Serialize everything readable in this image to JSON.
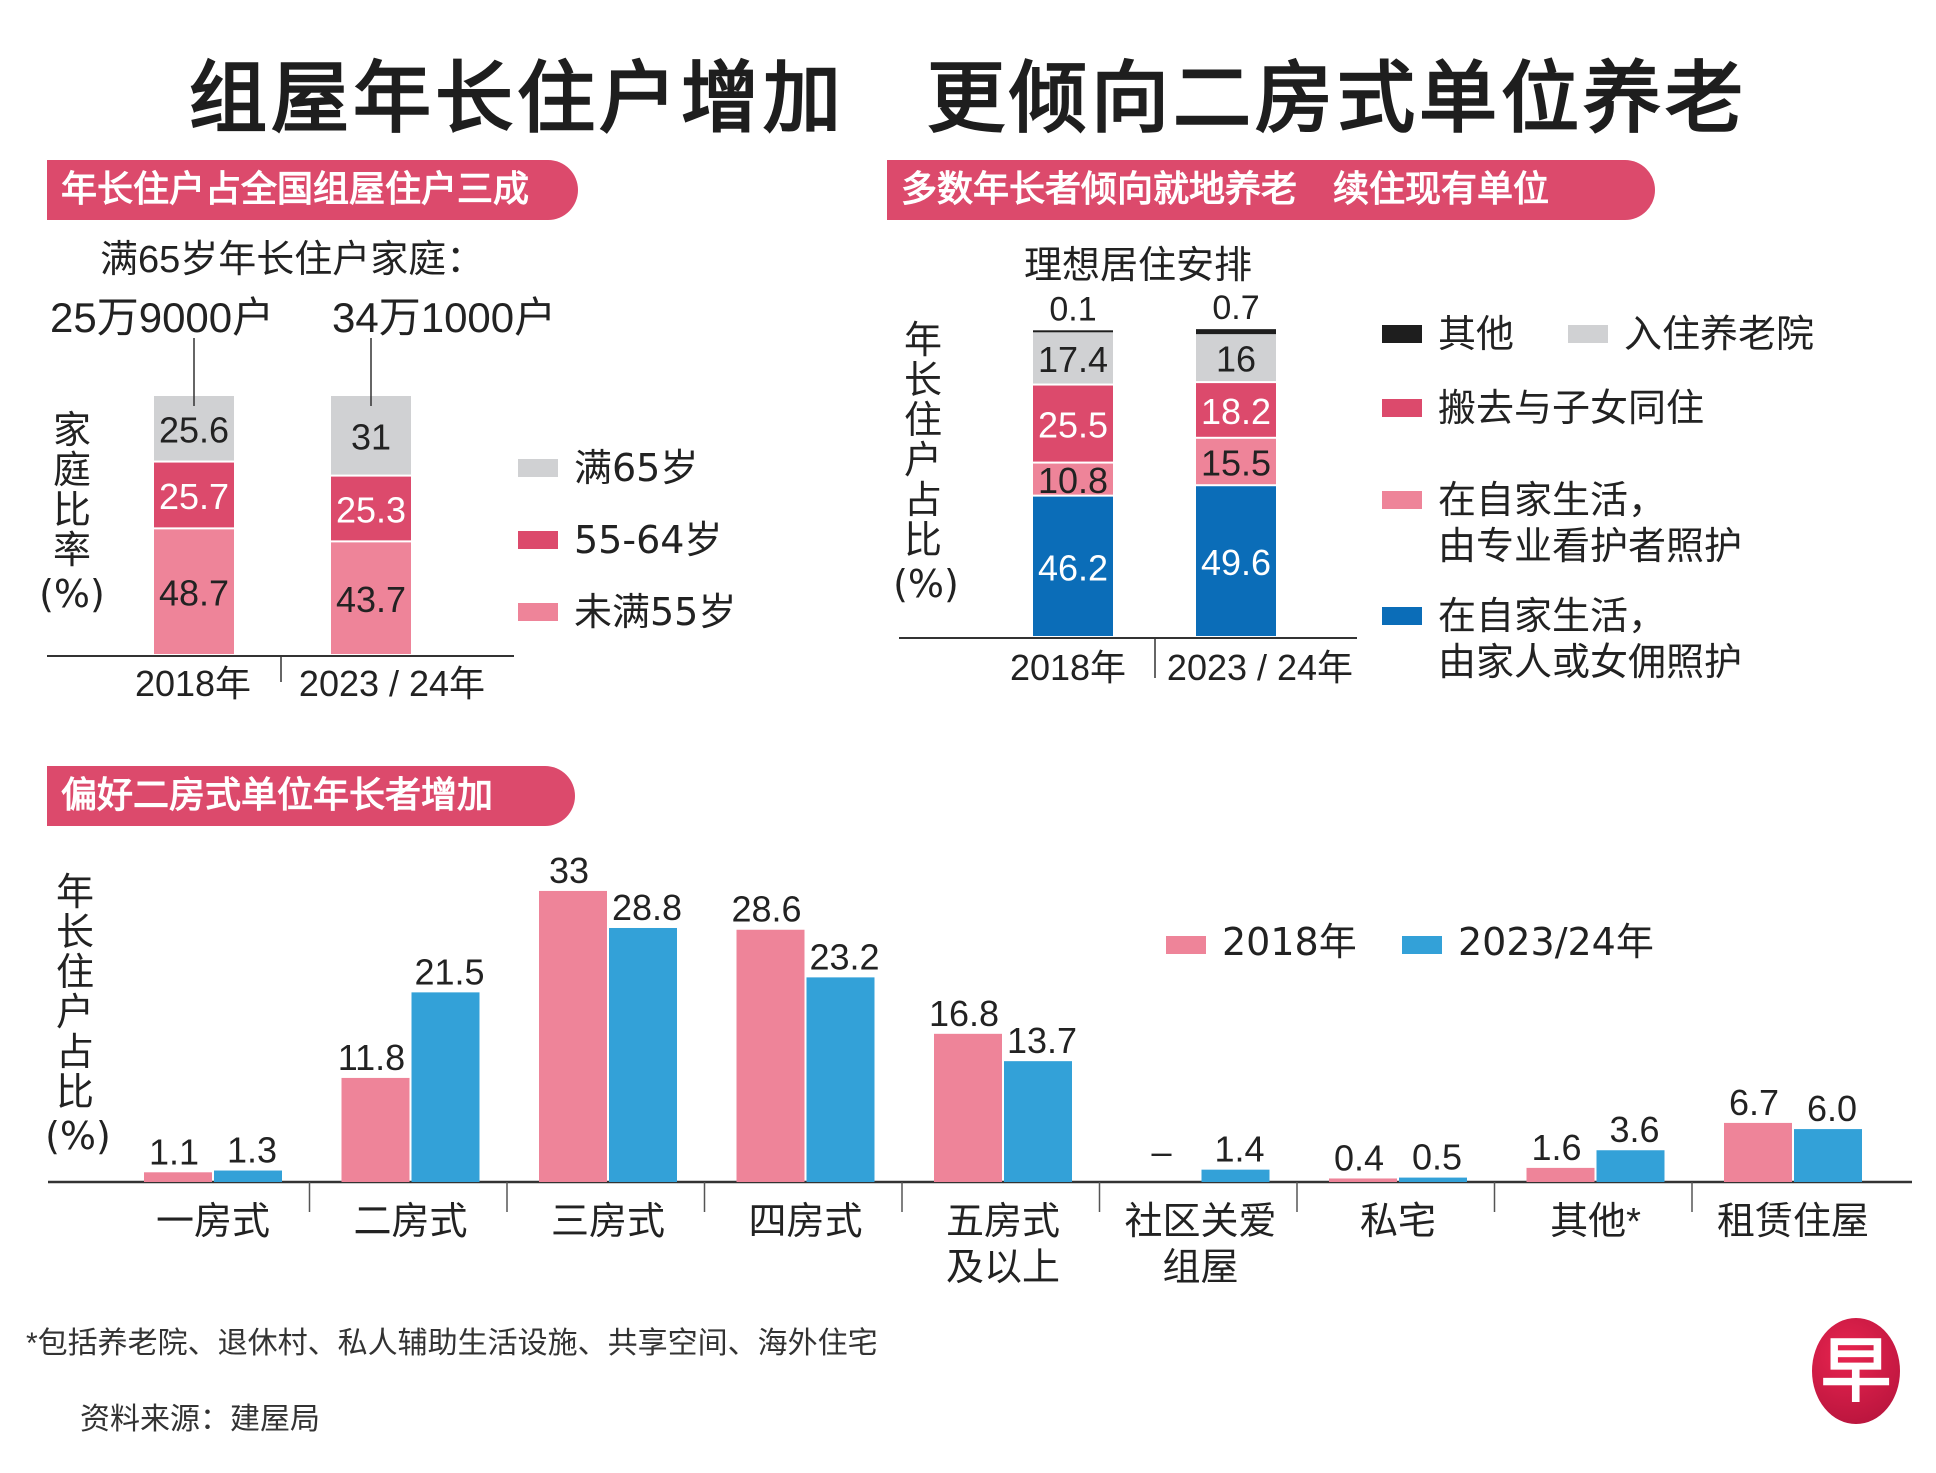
{
  "title": "组屋年长住户增加　更倾向二房式单位养老",
  "colors": {
    "header_bg": "#dc4a6c",
    "grey": "#d0d1d3",
    "red": "#dc4a6c",
    "pink": "#ee8499",
    "dark_blue": "#0b6db8",
    "light_blue": "#33a1d8",
    "black": "#1e1e1e"
  },
  "logo_char": "早",
  "footnote": "*包括养老院、退休村、私人辅助生活设施、共享空间、海外住宅",
  "source": "资料来源：建屋局",
  "chart_data": [
    {
      "type": "bar",
      "stacked": true,
      "section_header": "年长住户占全国组屋住户三成",
      "subtitle": "满65岁年长住户家庭：",
      "totals": [
        "25万9000户",
        "34万1000户"
      ],
      "ylabel": [
        "家",
        "庭",
        "比",
        "率",
        "(%)"
      ],
      "categories": [
        "2018年",
        "2023 / 24年"
      ],
      "series": [
        {
          "name": "未满55岁",
          "color": "#ee8499",
          "values": [
            48.7,
            43.7
          ],
          "label_color": "#222"
        },
        {
          "name": "55-64岁",
          "color": "#dc4a6c",
          "values": [
            25.7,
            25.3
          ],
          "label_color": "#fff"
        },
        {
          "name": "满65岁",
          "color": "#d0d1d3",
          "values": [
            25.6,
            31
          ],
          "label_color": "#222"
        }
      ],
      "legend_order": [
        "满65岁",
        "55-64岁",
        "未满55岁"
      ],
      "legend": "right",
      "ylim": [
        0,
        100
      ]
    },
    {
      "type": "bar",
      "stacked": true,
      "section_header": "多数年长者倾向就地养老　续住现有单位",
      "title": "理想居住安排",
      "ylabel": [
        "年",
        "长",
        "住",
        "户",
        "占",
        "比",
        "(%)"
      ],
      "categories": [
        "2018年",
        "2023 / 24年"
      ],
      "series": [
        {
          "name": "在自家生活，由家人或女佣照护",
          "color": "#0b6db8",
          "values": [
            46.2,
            49.6
          ],
          "label_color": "#fff"
        },
        {
          "name": "在自家生活，由专业看护者照护",
          "color": "#ee8499",
          "values": [
            10.8,
            15.5
          ],
          "label_color": "#222"
        },
        {
          "name": "搬去与子女同住",
          "color": "#dc4a6c",
          "values": [
            25.5,
            18.2
          ],
          "label_color": "#fff"
        },
        {
          "name": "入住养老院",
          "color": "#d0d1d3",
          "values": [
            17.4,
            16
          ],
          "label_color": "#222"
        },
        {
          "name": "其他",
          "color": "#1e1e1e",
          "values": [
            0.1,
            0.7
          ],
          "label_color": "#222"
        }
      ],
      "legend_items": [
        {
          "name": "其他",
          "lines": [
            "其他"
          ]
        },
        {
          "name": "入住养老院",
          "lines": [
            "入住养老院"
          ]
        },
        {
          "name": "搬去与子女同住",
          "lines": [
            "搬去与子女同住"
          ]
        },
        {
          "name": "在自家生活，由专业看护者照护",
          "lines": [
            "在自家生活，",
            "由专业看护者照护"
          ]
        },
        {
          "name": "在自家生活，由家人或女佣照护",
          "lines": [
            "在自家生活，",
            "由家人或女佣照护"
          ]
        }
      ],
      "legend": "right",
      "ylim": [
        0,
        100
      ]
    },
    {
      "type": "bar",
      "stacked": false,
      "section_header": "偏好二房式单位年长者增加",
      "ylabel": [
        "年",
        "长",
        "住",
        "户",
        "占",
        "比",
        "(%)"
      ],
      "categories": [
        [
          "一房式"
        ],
        [
          "二房式"
        ],
        [
          "三房式"
        ],
        [
          "四房式"
        ],
        [
          "五房式",
          "及以上"
        ],
        [
          "社区关爱",
          "组屋"
        ],
        [
          "私宅"
        ],
        [
          "其他*"
        ],
        [
          "租赁住屋"
        ]
      ],
      "series": [
        {
          "name": "2018年",
          "color": "#ee8499",
          "values": [
            1.1,
            11.8,
            33,
            28.6,
            16.8,
            null,
            0.4,
            1.6,
            6.7
          ],
          "labels": [
            "1.1",
            "11.8",
            "33",
            "28.6",
            "16.8",
            "–",
            "0.4",
            "1.6",
            "6.7"
          ]
        },
        {
          "name": "2023/24年",
          "color": "#33a1d8",
          "values": [
            1.3,
            21.5,
            28.8,
            23.2,
            13.7,
            1.4,
            0.5,
            3.6,
            6.0
          ],
          "labels": [
            "1.3",
            "21.5",
            "28.8",
            "23.2",
            "13.7",
            "1.4",
            "0.5",
            "3.6",
            "6.0"
          ]
        }
      ],
      "legend": "top-right",
      "ylim": [
        0,
        35
      ]
    }
  ]
}
